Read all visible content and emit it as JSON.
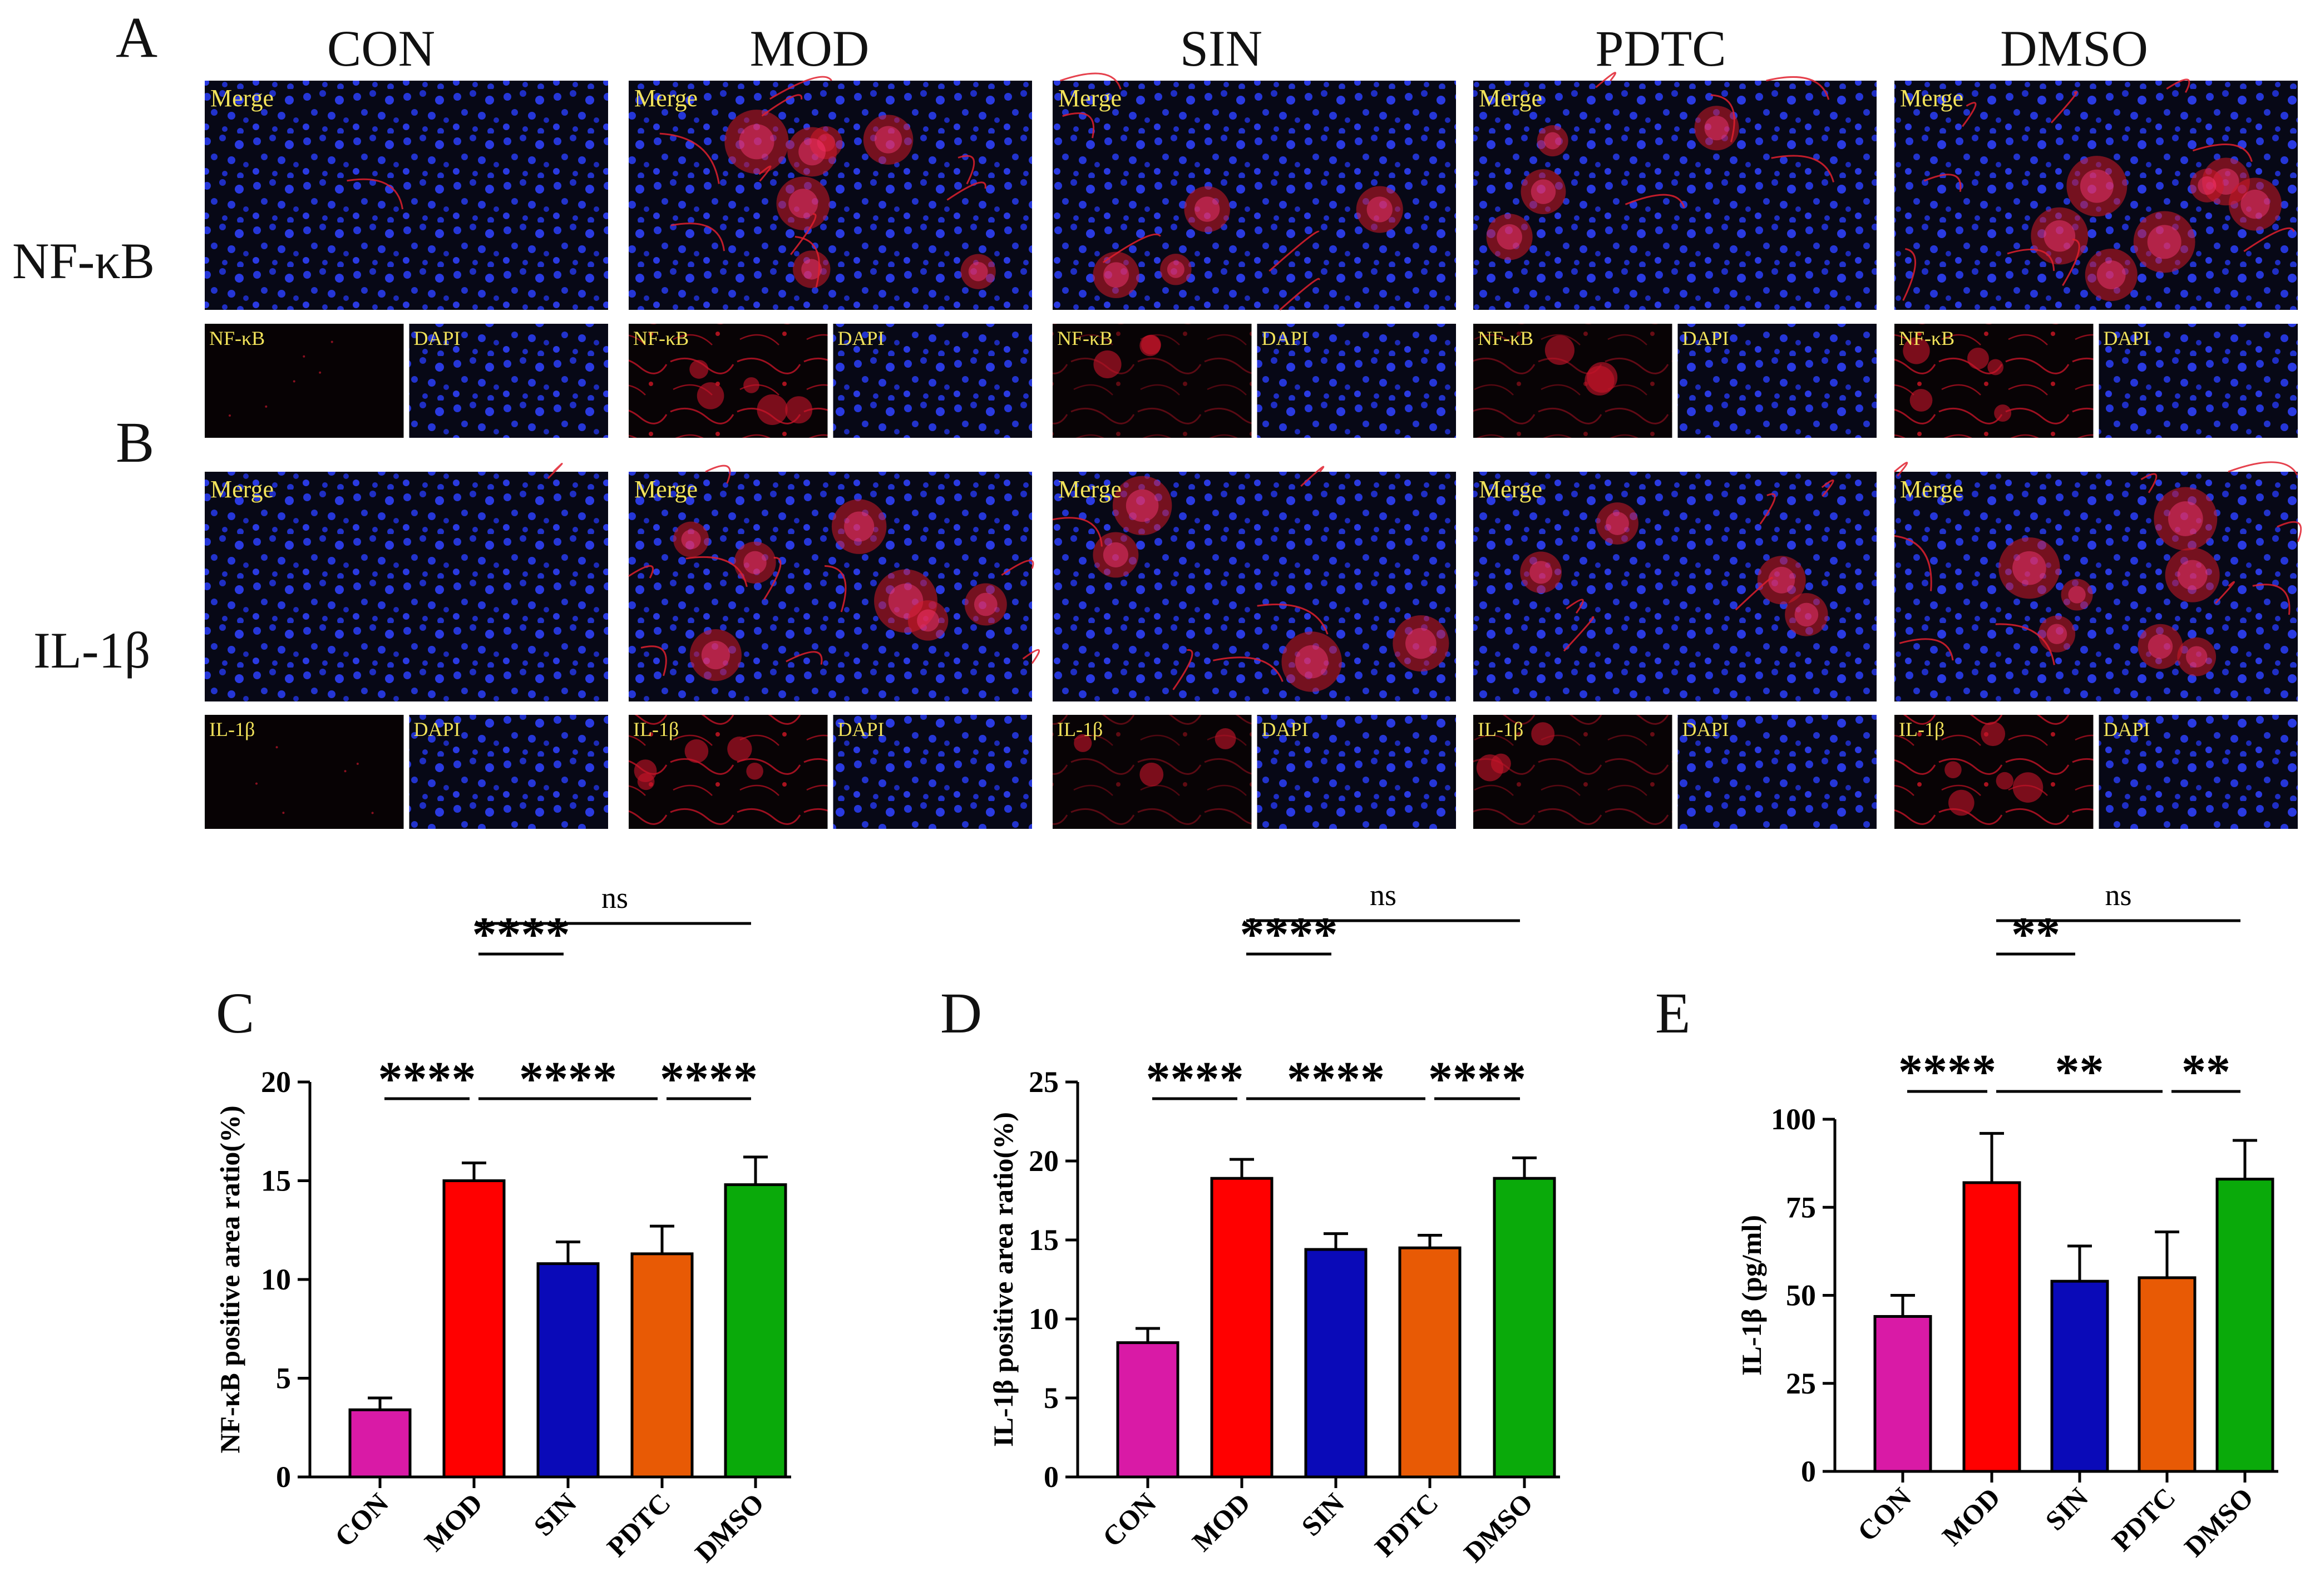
{
  "panel_letters": [
    "A",
    "B",
    "C",
    "D",
    "E"
  ],
  "groups": [
    "CON",
    "MOD",
    "SIN",
    "PDTC",
    "DMSO"
  ],
  "row_labels": [
    "NF-κB",
    "IL-1β"
  ],
  "micro_labels": {
    "merge": "Merge",
    "dapi": "DAPI",
    "marker_a": "NF-κB",
    "marker_b": "IL-1β"
  },
  "colors": {
    "CON": "#d91aa6",
    "MOD": "#ff0000",
    "SIN": "#0a0ab8",
    "PDTC": "#e85a05",
    "DMSO": "#0aaa0a",
    "micro_bg": "#070816",
    "nuclei": "#2536d8",
    "stain": "#d01a28",
    "label_yellow": "#f1e25a"
  },
  "chart_data": [
    {
      "panel": "C",
      "type": "bar",
      "categories": [
        "CON",
        "MOD",
        "SIN",
        "PDTC",
        "DMSO"
      ],
      "values": [
        3.4,
        15.0,
        10.8,
        11.3,
        14.8
      ],
      "errors": [
        0.6,
        0.9,
        1.1,
        1.4,
        1.4
      ],
      "ylabel": "NF-κB positive area  ratio(%)",
      "ylim": [
        0,
        20
      ],
      "yticks": [
        0,
        5,
        10,
        15,
        20
      ],
      "significance": [
        {
          "from": 0,
          "to": 1,
          "label": "****"
        },
        {
          "from": 1,
          "to": 3,
          "label": "****"
        },
        {
          "from": 3,
          "to": 4,
          "label": "****"
        },
        {
          "from": 1,
          "to": 2,
          "label": "****"
        },
        {
          "from": 1,
          "to": 4,
          "label": "ns"
        }
      ]
    },
    {
      "panel": "D",
      "type": "bar",
      "categories": [
        "CON",
        "MOD",
        "SIN",
        "PDTC",
        "DMSO"
      ],
      "values": [
        8.5,
        18.9,
        14.4,
        14.5,
        18.9
      ],
      "errors": [
        0.9,
        1.2,
        1.0,
        0.8,
        1.3
      ],
      "ylabel": "IL-1β positive area ratio(%)",
      "ylim": [
        0,
        25
      ],
      "yticks": [
        0,
        5,
        10,
        15,
        20,
        25
      ],
      "significance": [
        {
          "from": 0,
          "to": 1,
          "label": "****"
        },
        {
          "from": 1,
          "to": 3,
          "label": "****"
        },
        {
          "from": 3,
          "to": 4,
          "label": "****"
        },
        {
          "from": 1,
          "to": 2,
          "label": "****"
        },
        {
          "from": 1,
          "to": 4,
          "label": "ns"
        }
      ]
    },
    {
      "panel": "E",
      "type": "bar",
      "categories": [
        "CON",
        "MOD",
        "SIN",
        "PDTC",
        "DMSO"
      ],
      "values": [
        44,
        82,
        54,
        55,
        83
      ],
      "errors": [
        6,
        14,
        10,
        13,
        11
      ],
      "ylabel": "IL-1β (pg/ml)",
      "ylim": [
        0,
        100
      ],
      "yticks": [
        0,
        25,
        50,
        75,
        100
      ],
      "significance": [
        {
          "from": 0,
          "to": 1,
          "label": "****"
        },
        {
          "from": 1,
          "to": 3,
          "label": "**"
        },
        {
          "from": 3,
          "to": 4,
          "label": "**"
        },
        {
          "from": 1,
          "to": 2,
          "label": "**"
        },
        {
          "from": 1,
          "to": 4,
          "label": "ns"
        }
      ]
    }
  ]
}
